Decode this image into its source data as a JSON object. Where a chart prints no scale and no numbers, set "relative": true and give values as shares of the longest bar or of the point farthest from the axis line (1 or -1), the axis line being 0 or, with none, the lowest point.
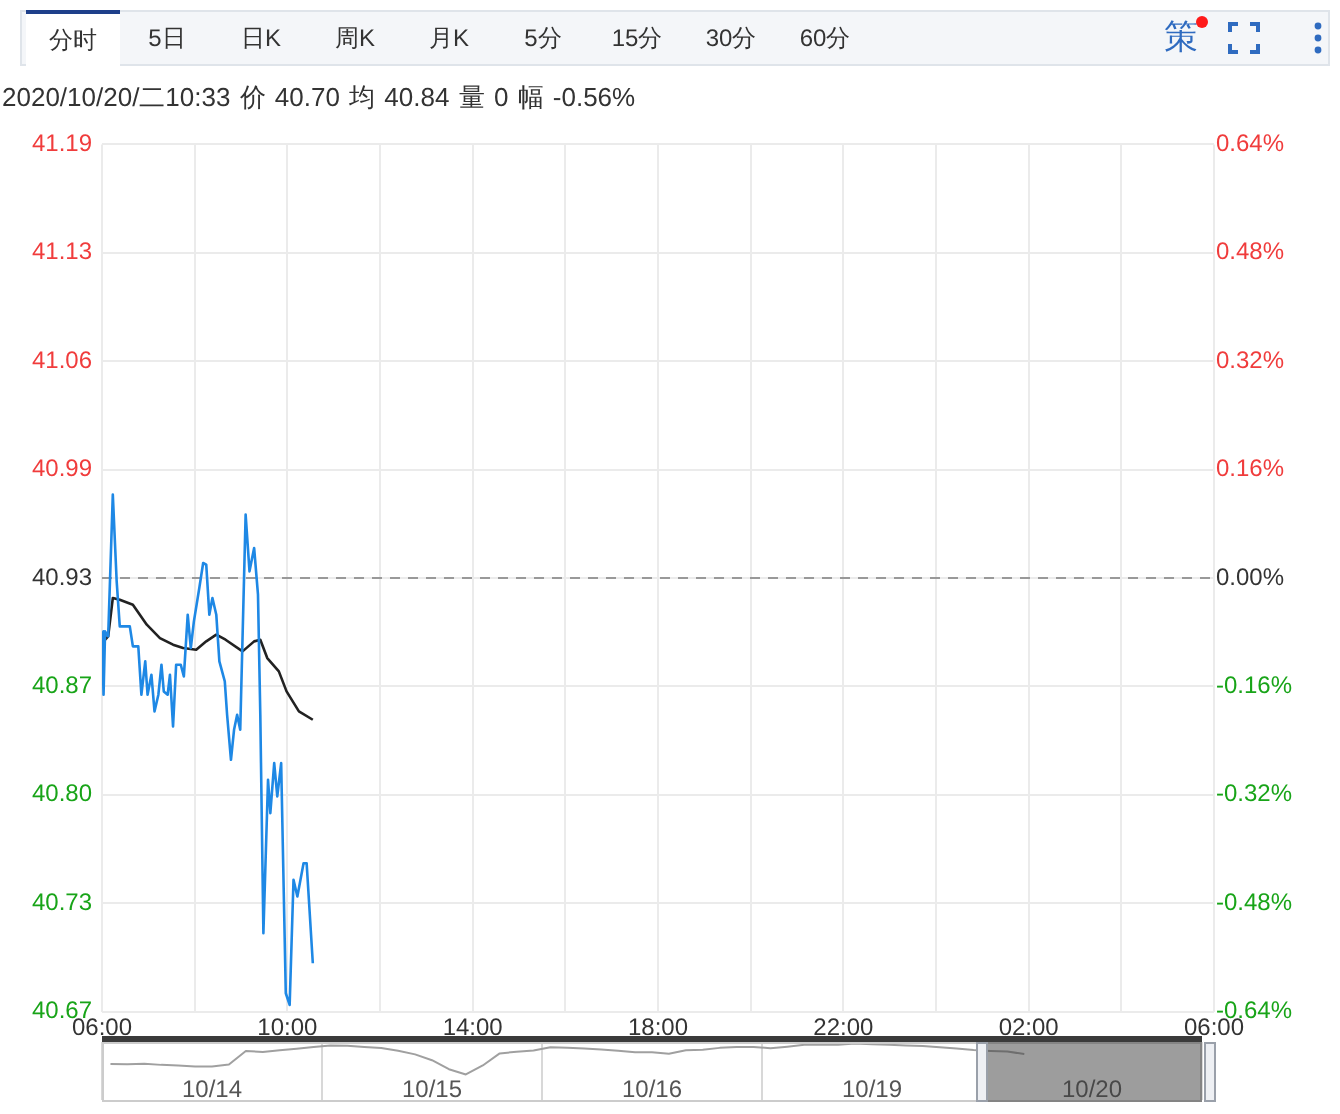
{
  "chart_data": [
    {
      "type": "line",
      "title": "2020/10/20/二10:33 价 40.70 均 40.84 量 0 幅 -0.56%",
      "annotations": [
        "分时",
        "5日",
        "日K",
        "周K",
        "月K",
        "5分",
        "15分",
        "30分",
        "60分",
        "策"
      ],
      "xlim": [
        "2020-10-20T06:00",
        "2020-10-21T06:00"
      ],
      "xticks": [
        {
          "value": "2020-10-20T06:00",
          "label": "06:00"
        },
        {
          "value": "2020-10-20T08:00",
          "label": null
        },
        {
          "value": "2020-10-20T10:00",
          "label": "10:00"
        },
        {
          "value": "2020-10-20T12:00",
          "label": null
        },
        {
          "value": "2020-10-20T14:00",
          "label": "14:00"
        },
        {
          "value": "2020-10-20T16:00",
          "label": null
        },
        {
          "value": "2020-10-20T18:00",
          "label": "18:00"
        },
        {
          "value": "2020-10-20T20:00",
          "label": null
        },
        {
          "value": "2020-10-20T22:00",
          "label": "22:00"
        },
        {
          "value": "2020-10-21T00:00",
          "label": null
        },
        {
          "value": "2020-10-21T02:00",
          "label": "02:00"
        },
        {
          "value": "2020-10-21T04:00",
          "label": null
        },
        {
          "value": "2020-10-21T06:00",
          "label": "06:00"
        }
      ],
      "ylim": [
        40.67,
        41.19
      ],
      "yticks": [
        {
          "value": 40.67,
          "label": "40.67"
        },
        {
          "value": 40.735,
          "label": "40.73"
        },
        {
          "value": 40.8,
          "label": "40.80"
        },
        {
          "value": 40.865,
          "label": "40.87"
        },
        {
          "value": 40.93,
          "label": "40.93"
        },
        {
          "value": 40.995,
          "label": "40.99"
        },
        {
          "value": 41.06,
          "label": "41.06"
        },
        {
          "value": 41.125,
          "label": "41.13"
        },
        {
          "value": 41.19,
          "label": "41.19"
        }
      ],
      "y2lim": [
        -0.64,
        0.64
      ],
      "y2ticks": [
        {
          "value": -0.64,
          "label": "-0.64%"
        },
        {
          "value": -0.48,
          "label": "-0.48%"
        },
        {
          "value": -0.32,
          "label": "-0.32%"
        },
        {
          "value": -0.16,
          "label": "-0.16%"
        },
        {
          "value": 0,
          "label": "0.00%"
        },
        {
          "value": 0.16,
          "label": "0.16%"
        },
        {
          "value": 0.32,
          "label": "0.32%"
        },
        {
          "value": 0.48,
          "label": "0.48%"
        },
        {
          "value": 0.64,
          "label": "0.64%"
        }
      ],
      "series": [
        {
          "color": "#1e88e5",
          "x": [
            "2020-10-20T06:00",
            "2020-10-20T06:02",
            "2020-10-20T06:04",
            "2020-10-20T06:08",
            "2020-10-20T06:14",
            "2020-10-20T06:19",
            "2020-10-20T06:23",
            "2020-10-20T06:32",
            "2020-10-20T06:36",
            "2020-10-20T06:40",
            "2020-10-20T06:47",
            "2020-10-20T06:51",
            "2020-10-20T06:56",
            "2020-10-20T06:59",
            "2020-10-20T07:04",
            "2020-10-20T07:08",
            "2020-10-20T07:13",
            "2020-10-20T07:17",
            "2020-10-20T07:20",
            "2020-10-20T07:25",
            "2020-10-20T07:28",
            "2020-10-20T07:32",
            "2020-10-20T07:36",
            "2020-10-20T07:42",
            "2020-10-20T07:46",
            "2020-10-20T07:51",
            "2020-10-20T07:55",
            "2020-10-20T07:59",
            "2020-10-20T08:06",
            "2020-10-20T08:11",
            "2020-10-20T08:15",
            "2020-10-20T08:19",
            "2020-10-20T08:23",
            "2020-10-20T08:28",
            "2020-10-20T08:32",
            "2020-10-20T08:39",
            "2020-10-20T08:42",
            "2020-10-20T08:47",
            "2020-10-20T08:51",
            "2020-10-20T08:55",
            "2020-10-20T08:59",
            "2020-10-20T09:06",
            "2020-10-20T09:11",
            "2020-10-20T09:17",
            "2020-10-20T09:22",
            "2020-10-20T09:25",
            "2020-10-20T09:29",
            "2020-10-20T09:35",
            "2020-10-20T09:38",
            "2020-10-20T09:43",
            "2020-10-20T09:47",
            "2020-10-20T09:52",
            "2020-10-20T09:58",
            "2020-10-20T10:03",
            "2020-10-20T10:08",
            "2020-10-20T10:13",
            "2020-10-20T10:21",
            "2020-10-20T10:25",
            "2020-10-20T10:33"
          ],
          "values": [
            40.898,
            40.86,
            40.898,
            40.895,
            40.98,
            40.928,
            40.901,
            40.901,
            40.901,
            40.889,
            40.889,
            40.86,
            40.88,
            40.86,
            40.872,
            40.85,
            40.86,
            40.878,
            40.862,
            40.86,
            40.872,
            40.841,
            40.878,
            40.878,
            40.871,
            40.908,
            40.888,
            40.904,
            40.924,
            40.939,
            40.938,
            40.908,
            40.918,
            40.908,
            40.88,
            40.868,
            40.848,
            40.821,
            40.839,
            40.848,
            40.839,
            40.968,
            40.934,
            40.948,
            40.92,
            40.848,
            40.717,
            40.809,
            40.789,
            40.819,
            40.799,
            40.819,
            40.681,
            40.674,
            40.749,
            40.739,
            40.759,
            40.759,
            40.699
          ]
        },
        {
          "color": "#222222",
          "x": [
            "2020-10-20T06:02",
            "2020-10-20T06:08",
            "2020-10-20T06:14",
            "2020-10-20T06:23",
            "2020-10-20T06:40",
            "2020-10-20T06:49",
            "2020-10-20T06:58",
            "2020-10-20T07:15",
            "2020-10-20T07:32",
            "2020-10-20T07:45",
            "2020-10-20T08:02",
            "2020-10-20T08:15",
            "2020-10-20T08:28",
            "2020-10-20T08:40",
            "2020-10-20T09:02",
            "2020-10-20T09:17",
            "2020-10-20T09:25",
            "2020-10-20T09:34",
            "2020-10-20T09:49",
            "2020-10-20T09:59",
            "2020-10-20T10:15",
            "2020-10-20T10:33"
          ],
          "values": [
            40.892,
            40.895,
            40.918,
            40.917,
            40.914,
            40.908,
            40.902,
            40.894,
            40.89,
            40.888,
            40.887,
            40.892,
            40.896,
            40.893,
            40.886,
            40.892,
            40.893,
            40.882,
            40.874,
            40.862,
            40.85,
            40.845
          ]
        }
      ],
      "ref_lines": [
        {
          "axis": "y",
          "value": 40.93,
          "color": "#999999",
          "line_style": "dashed"
        }
      ],
      "grid": true,
      "legend": false,
      "marker": "none",
      "line_style": "solid"
    },
    {
      "type": "line",
      "relative": true,
      "tick_labels": "x",
      "legend": false,
      "marker": "none",
      "grid": "x",
      "categories": [
        null,
        null,
        null,
        null,
        null,
        null,
        "10/14",
        null,
        null,
        null,
        null,
        null,
        null,
        null,
        null,
        null,
        null,
        null,
        null,
        "10/15",
        null,
        null,
        null,
        null,
        null,
        null,
        null,
        null,
        null,
        null,
        null,
        null,
        "10/16",
        null,
        null,
        null,
        null,
        null,
        null,
        null,
        null,
        null,
        null,
        null,
        null,
        "10/19",
        null,
        null,
        null,
        null,
        null,
        null,
        null,
        null,
        null,
        null,
        null,
        null,
        "10/20",
        null,
        null,
        null,
        null,
        null,
        null
      ],
      "series": [
        {
          "color": "#a0a0a0",
          "values": [
            0.34,
            0.33,
            0.35,
            0.31,
            0.29,
            0.26,
            0.26,
            0.32,
            0.76,
            0.73,
            0.78,
            0.83,
            0.89,
            0.94,
            0.93,
            0.89,
            0.855,
            0.77,
            0.65,
            0.46,
            0.17,
            0,
            0.29,
            0.68,
            0.735,
            0.775,
            0.88,
            0.86,
            0.84,
            0.81,
            0.77,
            0.72,
            0.715,
            0.67,
            0.78,
            0.8,
            0.86,
            0.89,
            0.89,
            0.85,
            0.9,
            0.96,
            0.965,
            0.96,
            1,
            0.98,
            0.965,
            0.94,
            0.92,
            0.88,
            0.84,
            0.79,
            0.76,
            0.74,
            0.66,
            null,
            null,
            null,
            null,
            null,
            null,
            null,
            null,
            null,
            null
          ]
        }
      ]
    }
  ]
}
